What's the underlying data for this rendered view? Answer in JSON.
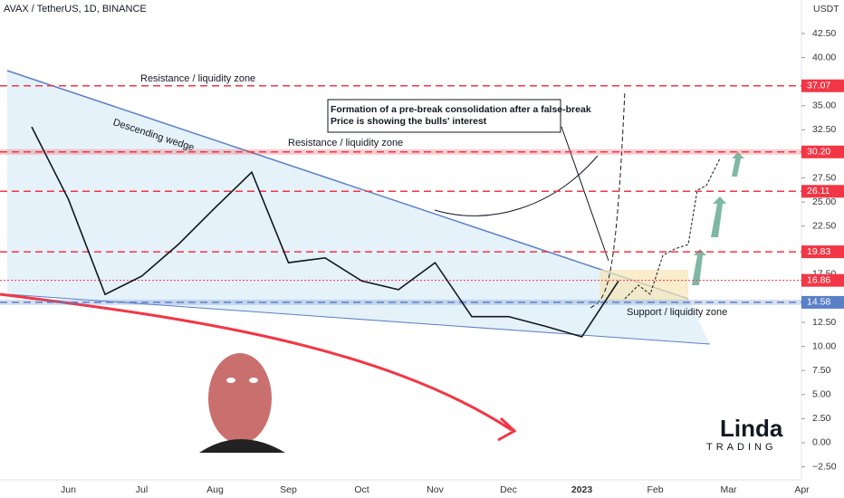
{
  "header": {
    "symbol": "AVAX / TetherUS, 1D, BINANCE",
    "currency": "USDT"
  },
  "chart_data": {
    "type": "line",
    "color": "#131722",
    "categories": [
      null,
      "Jun",
      null,
      "Jul",
      null,
      "Aug",
      null,
      "Sep",
      null,
      "Oct",
      null,
      "Nov",
      null,
      "Dec",
      null,
      "2023",
      null,
      "Feb",
      null,
      "Mar",
      null,
      "Apr"
    ],
    "values": [
      32.8,
      25.3,
      15.4,
      17.3,
      20.6,
      24.4,
      28.1,
      18.7,
      19.2,
      16.8,
      15.9,
      18.7,
      13.1,
      13.1,
      12.1,
      11.0,
      16.8,
      null,
      null,
      null,
      null,
      null
    ],
    "ylim": [
      -3.86,
      45.98
    ],
    "yticks": [
      {
        "value": 42.5,
        "label": "42.50"
      },
      {
        "value": 40,
        "label": "40.00"
      },
      {
        "value": 35,
        "label": "35.00"
      },
      {
        "value": 32.5,
        "label": "32.50"
      },
      {
        "value": 27.5,
        "label": "27.50"
      },
      {
        "value": 25,
        "label": "25.00"
      },
      {
        "value": 22.5,
        "label": "22.50"
      },
      {
        "value": 17.5,
        "label": "17.50"
      },
      {
        "value": 12.5,
        "label": "12.50"
      },
      {
        "value": 10,
        "label": "10.00"
      },
      {
        "value": 7.5,
        "label": "7.50"
      },
      {
        "value": 5,
        "label": "5.00"
      },
      {
        "value": 2.5,
        "label": "2.50"
      },
      {
        "value": 0,
        "label": "0.00"
      },
      {
        "value": -2.5,
        "label": "−2.50"
      }
    ],
    "levels": [
      {
        "value": 37.07,
        "label": "37.07",
        "color": "#f23645",
        "style": "dashed"
      },
      {
        "value": 30.2,
        "label": "30.20",
        "color": "#f23645",
        "style": "band"
      },
      {
        "value": 26.11,
        "label": "26.11",
        "color": "#f23645",
        "style": "dashed"
      },
      {
        "value": 19.83,
        "label": "19.83",
        "color": "#f23645",
        "style": "dashed"
      },
      {
        "value": 16.86,
        "label": "16.86",
        "color": "#f23645",
        "style": "dotted"
      },
      {
        "value": 14.58,
        "label": "14.58",
        "color": "#5b7fc7",
        "style": "band"
      }
    ],
    "annotations": {
      "resistance_top": "Resistance / liquidity zone",
      "resistance_mid": "Resistance / liquidity zone",
      "wedge": "Descending wedge",
      "support": "Support / liquidity zone",
      "callout": [
        "Formation of a pre-break consolidation after a false-break",
        "Price is showing the bulls' interest"
      ]
    },
    "logo": [
      "Linda",
      "TRADING"
    ]
  }
}
